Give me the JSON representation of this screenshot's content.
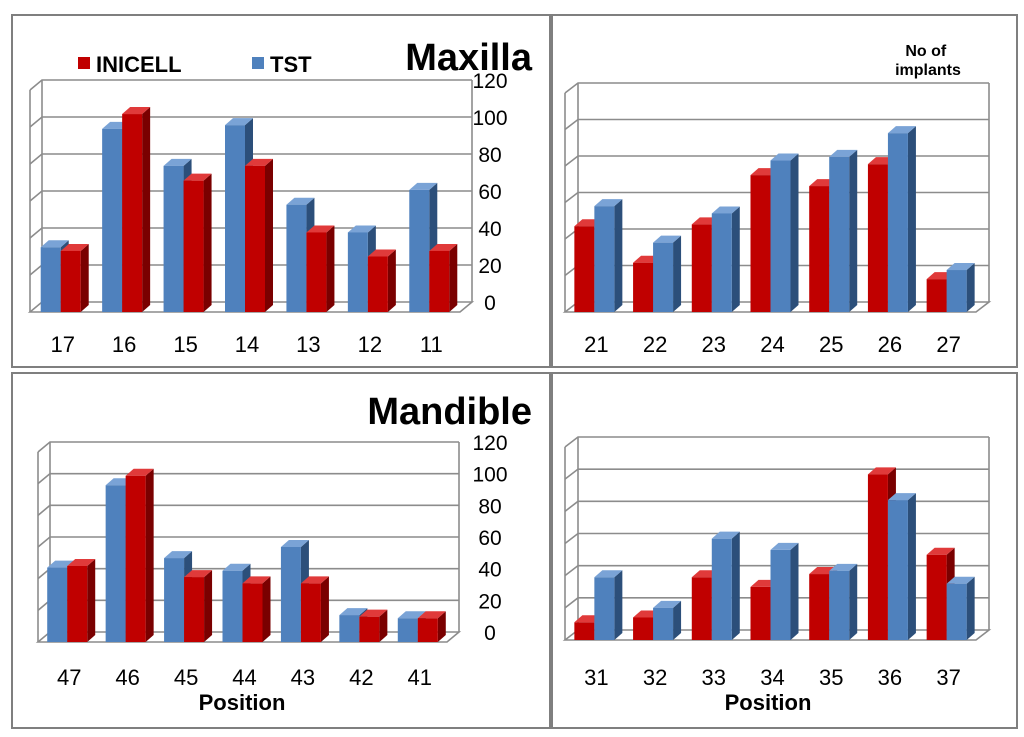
{
  "legend": {
    "inicell": "INICELL",
    "tst": "TST"
  },
  "colors": {
    "inicell_front": "#c00000",
    "inicell_side": "#7a0000",
    "inicell_top": "#e03a3a",
    "tst_front": "#4f81bd",
    "tst_side": "#2c4f7a",
    "tst_top": "#7aa3d6"
  },
  "y_ticks": [
    "120",
    "100",
    "80",
    "60",
    "40",
    "20",
    "0"
  ],
  "chart_data": [
    {
      "id": "maxilla-right",
      "type": "bar",
      "title": "Maxilla",
      "categories": [
        "17",
        "16",
        "15",
        "14",
        "13",
        "12",
        "11"
      ],
      "series": [
        {
          "name": "INICELL",
          "values": [
            33,
            107,
            71,
            79,
            43,
            30,
            33
          ]
        },
        {
          "name": "TST",
          "values": [
            35,
            99,
            79,
            101,
            58,
            43,
            66
          ]
        }
      ],
      "ylim": [
        0,
        120
      ],
      "xlabel": "",
      "legend": "top-left"
    },
    {
      "id": "maxilla-left",
      "type": "bar",
      "annotation": "No of implants",
      "categories": [
        "21",
        "22",
        "23",
        "24",
        "25",
        "26",
        "27"
      ],
      "series": [
        {
          "name": "INICELL",
          "values": [
            47,
            27,
            48,
            75,
            69,
            81,
            18
          ]
        },
        {
          "name": "TST",
          "values": [
            58,
            38,
            54,
            83,
            85,
            98,
            23
          ]
        }
      ],
      "ylim": [
        0,
        120
      ],
      "xlabel": ""
    },
    {
      "id": "mandible-right",
      "type": "bar",
      "title": "Mandible",
      "categories": [
        "47",
        "46",
        "45",
        "44",
        "43",
        "42",
        "41"
      ],
      "series": [
        {
          "name": "INICELL",
          "values": [
            48,
            105,
            41,
            37,
            37,
            16,
            15
          ]
        },
        {
          "name": "TST",
          "values": [
            47,
            99,
            53,
            45,
            60,
            17,
            15
          ]
        }
      ],
      "ylim": [
        0,
        120
      ],
      "xlabel": "Position"
    },
    {
      "id": "mandible-left",
      "type": "bar",
      "categories": [
        "31",
        "32",
        "33",
        "34",
        "35",
        "36",
        "37"
      ],
      "series": [
        {
          "name": "INICELL",
          "values": [
            11,
            14,
            39,
            33,
            41,
            103,
            53
          ]
        },
        {
          "name": "TST",
          "values": [
            39,
            20,
            63,
            56,
            43,
            87,
            35
          ]
        }
      ],
      "ylim": [
        0,
        120
      ],
      "xlabel": "Position"
    }
  ]
}
